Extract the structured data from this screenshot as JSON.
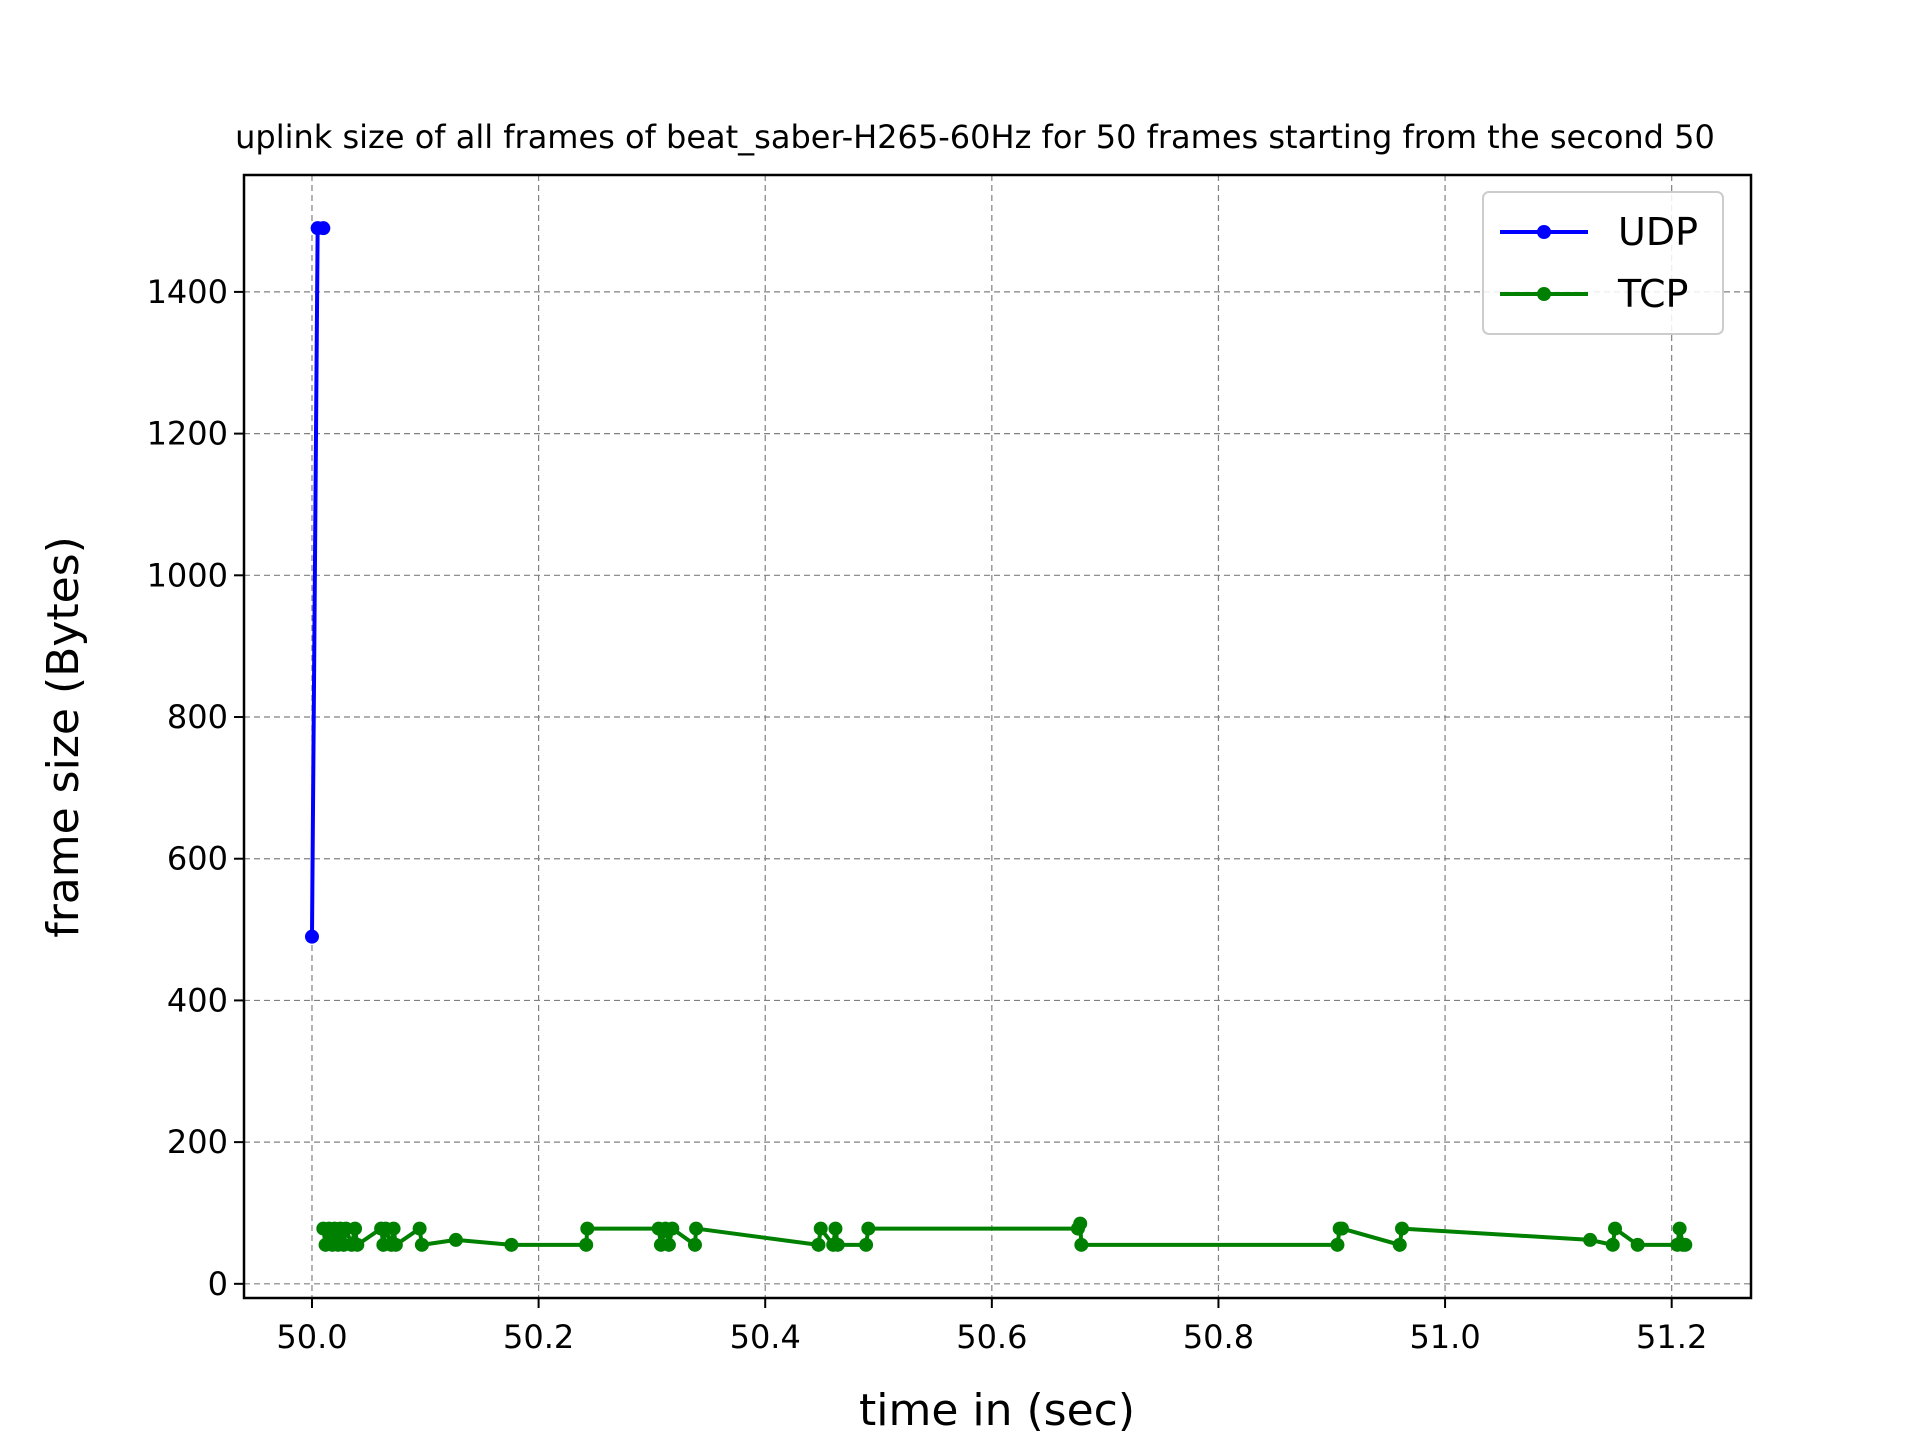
{
  "chart_data": {
    "type": "line",
    "title": "uplink size of all frames of beat_saber-H265-60Hz for 50 frames starting from the second 50",
    "xlabel": "time in (sec)",
    "ylabel": "frame size (Bytes)",
    "xlim": [
      49.94,
      51.27
    ],
    "ylim": [
      -20,
      1565
    ],
    "xticks": [
      50.0,
      50.2,
      50.4,
      50.6,
      50.8,
      51.0,
      51.2
    ],
    "xtick_labels": [
      "50.0",
      "50.2",
      "50.4",
      "50.6",
      "50.8",
      "51.0",
      "51.2"
    ],
    "yticks": [
      0,
      200,
      400,
      600,
      800,
      1000,
      1200,
      1400
    ],
    "ytick_labels": [
      "0",
      "200",
      "400",
      "600",
      "800",
      "1000",
      "1200",
      "1400"
    ],
    "grid": true,
    "legend_position": "top-right",
    "series": [
      {
        "name": "UDP",
        "color": "#0000ff",
        "x": [
          50.0,
          50.005,
          50.01
        ],
        "y": [
          490,
          1490,
          1490
        ]
      },
      {
        "name": "TCP",
        "color": "#008000",
        "x": [
          50.01,
          50.012,
          50.015,
          50.018,
          50.02,
          50.023,
          50.025,
          50.028,
          50.03,
          50.035,
          50.038,
          50.04,
          50.061,
          50.063,
          50.065,
          50.07,
          50.072,
          50.074,
          50.095,
          50.097,
          50.127,
          50.176,
          50.242,
          50.243,
          50.306,
          50.308,
          50.312,
          50.315,
          50.318,
          50.338,
          50.339,
          50.447,
          50.449,
          50.46,
          50.462,
          50.464,
          50.489,
          50.491,
          50.676,
          50.678,
          50.679,
          50.905,
          50.907,
          50.909,
          50.96,
          50.962,
          51.128,
          51.148,
          51.15,
          51.17,
          51.205,
          51.207,
          51.21,
          51.212
        ],
        "y": [
          78,
          55,
          78,
          55,
          78,
          55,
          78,
          55,
          78,
          55,
          78,
          55,
          78,
          55,
          78,
          55,
          78,
          55,
          78,
          55,
          62,
          55,
          55,
          78,
          78,
          55,
          78,
          55,
          78,
          55,
          78,
          55,
          78,
          55,
          78,
          55,
          55,
          78,
          78,
          85,
          55,
          55,
          78,
          78,
          55,
          78,
          62,
          55,
          78,
          55,
          55,
          78,
          55,
          55
        ]
      }
    ]
  }
}
